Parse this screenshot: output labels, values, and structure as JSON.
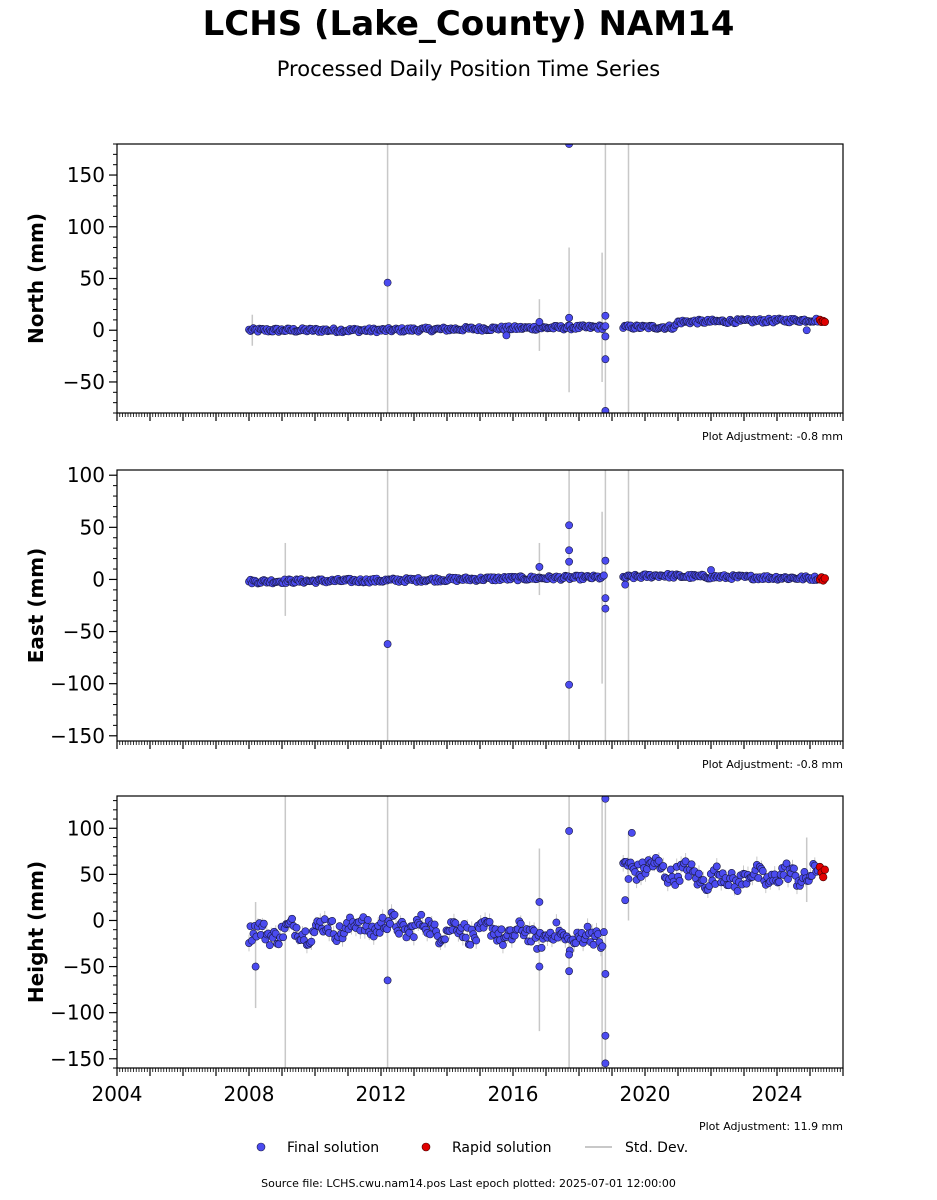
{
  "header": {
    "title": "LCHS (Lake_County) NAM14",
    "subtitle": "Processed Daily Position Time Series"
  },
  "footer": {
    "source": "Source file: LCHS.cwu.nam14.pos  Last epoch plotted: 2025-07-01 12:00:00"
  },
  "legend": {
    "final": "Final solution",
    "rapid": "Rapid solution",
    "std": "Std. Dev."
  },
  "colors": {
    "final": "#4b4bf0",
    "rapid": "#e00000",
    "std": "#c8c8c8"
  },
  "chart_data": [
    {
      "type": "scatter",
      "ylabel": "North (mm)",
      "ylim": [
        -80,
        180
      ],
      "xlim": [
        2004,
        2026
      ],
      "yticks": [
        -50,
        0,
        50,
        100,
        150
      ],
      "adjustment": "Plot Adjustment: -0.8 mm",
      "trend": [
        [
          2008.0,
          0
        ],
        [
          2012.0,
          0
        ],
        [
          2016.0,
          2
        ],
        [
          2018.7,
          3
        ],
        [
          2019.4,
          3
        ],
        [
          2020.9,
          3
        ],
        [
          2021.0,
          8
        ],
        [
          2025.5,
          10
        ]
      ],
      "scatter_amp": 2,
      "gaps": [
        [
          2018.8,
          2019.3
        ]
      ],
      "outliers": [
        [
          2012.2,
          46
        ],
        [
          2016.8,
          8
        ],
        [
          2017.7,
          180
        ],
        [
          2017.7,
          12
        ],
        [
          2018.8,
          14
        ],
        [
          2018.8,
          4
        ],
        [
          2018.8,
          -6
        ],
        [
          2018.8,
          -28
        ],
        [
          2018.8,
          -78
        ],
        [
          2015.8,
          -5
        ],
        [
          2024.9,
          0
        ]
      ],
      "std_lines": [
        [
          2008.1,
          -15,
          15
        ],
        [
          2012.2,
          -80,
          180
        ],
        [
          2016.8,
          -20,
          30
        ],
        [
          2017.7,
          -60,
          80
        ],
        [
          2018.7,
          -50,
          75
        ],
        [
          2018.8,
          -80,
          180
        ],
        [
          2019.5,
          -80,
          180
        ]
      ],
      "rapid": [
        [
          2025.3,
          10
        ],
        [
          2025.35,
          8
        ],
        [
          2025.4,
          9
        ],
        [
          2025.45,
          8
        ]
      ]
    },
    {
      "type": "scatter",
      "ylabel": "East (mm)",
      "ylim": [
        -155,
        105
      ],
      "xlim": [
        2004,
        2026
      ],
      "yticks": [
        -150,
        -100,
        -50,
        0,
        50,
        100
      ],
      "adjustment": "Plot Adjustment: -0.8 mm",
      "trend": [
        [
          2008.0,
          -2
        ],
        [
          2012.0,
          -1
        ],
        [
          2016.0,
          1
        ],
        [
          2018.7,
          2
        ],
        [
          2019.4,
          2
        ],
        [
          2020.5,
          4
        ],
        [
          2021.0,
          3
        ],
        [
          2025.5,
          1
        ]
      ],
      "scatter_amp": 2,
      "gaps": [
        [
          2018.8,
          2019.3
        ]
      ],
      "outliers": [
        [
          2012.2,
          -62
        ],
        [
          2016.8,
          12
        ],
        [
          2017.7,
          52
        ],
        [
          2017.7,
          28
        ],
        [
          2017.7,
          17
        ],
        [
          2017.7,
          -101
        ],
        [
          2018.8,
          18
        ],
        [
          2018.8,
          -18
        ],
        [
          2018.8,
          -28
        ],
        [
          2019.4,
          -5
        ],
        [
          2022.0,
          9
        ]
      ],
      "std_lines": [
        [
          2009.1,
          -35,
          35
        ],
        [
          2012.2,
          -155,
          105
        ],
        [
          2016.8,
          -15,
          35
        ],
        [
          2017.7,
          -155,
          105
        ],
        [
          2018.7,
          -100,
          65
        ],
        [
          2018.8,
          -155,
          105
        ],
        [
          2019.5,
          -155,
          105
        ]
      ],
      "rapid": [
        [
          2025.3,
          0
        ],
        [
          2025.35,
          2
        ],
        [
          2025.4,
          -1
        ],
        [
          2025.45,
          1
        ]
      ]
    },
    {
      "type": "scatter",
      "ylabel": "Height (mm)",
      "ylim": [
        -160,
        135
      ],
      "xlim": [
        2004,
        2026
      ],
      "yticks": [
        -150,
        -100,
        -50,
        0,
        50,
        100
      ],
      "xticks": [
        2004,
        2008,
        2012,
        2016,
        2020,
        2024
      ],
      "adjustment": "Plot Adjustment: 11.9 mm",
      "trend": [
        [
          2008.0,
          -15
        ],
        [
          2012.0,
          -5
        ],
        [
          2016.0,
          -15
        ],
        [
          2018.7,
          -20
        ],
        [
          2019.4,
          60
        ],
        [
          2020.5,
          55
        ],
        [
          2022.0,
          45
        ],
        [
          2025.5,
          50
        ]
      ],
      "scatter_amp": 10,
      "gaps": [
        [
          2018.8,
          2019.3
        ]
      ],
      "outliers": [
        [
          2008.2,
          -50
        ],
        [
          2012.2,
          -65
        ],
        [
          2016.8,
          20
        ],
        [
          2016.8,
          -50
        ],
        [
          2017.7,
          97
        ],
        [
          2017.7,
          -37
        ],
        [
          2017.7,
          -55
        ],
        [
          2018.8,
          132
        ],
        [
          2018.8,
          -58
        ],
        [
          2018.8,
          -125
        ],
        [
          2018.8,
          -155
        ],
        [
          2019.4,
          22
        ],
        [
          2019.6,
          95
        ],
        [
          2019.5,
          45
        ]
      ],
      "std_lines": [
        [
          2008.2,
          -95,
          20
        ],
        [
          2009.1,
          -160,
          135
        ],
        [
          2012.2,
          -160,
          135
        ],
        [
          2016.8,
          -120,
          78
        ],
        [
          2017.7,
          -160,
          135
        ],
        [
          2018.7,
          -160,
          135
        ],
        [
          2018.8,
          -160,
          135
        ],
        [
          2019.5,
          0,
          95
        ],
        [
          2024.9,
          20,
          90
        ]
      ],
      "rapid": [
        [
          2025.3,
          58
        ],
        [
          2025.35,
          52
        ],
        [
          2025.4,
          47
        ],
        [
          2025.45,
          55
        ]
      ]
    }
  ]
}
